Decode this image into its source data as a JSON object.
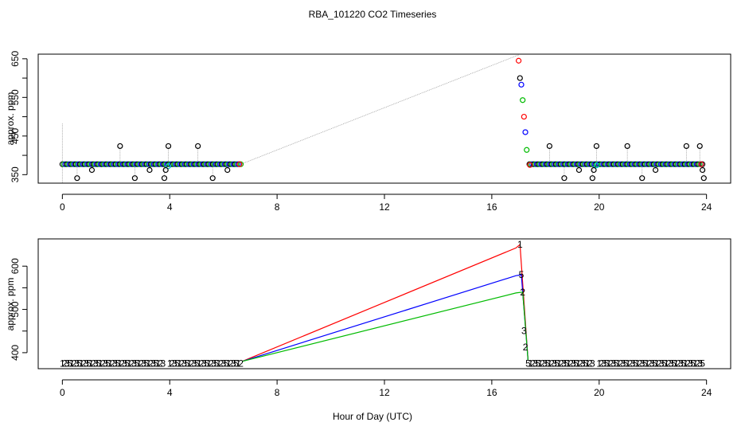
{
  "title": "RBA_101220  CO2 Timeseries",
  "xlabel": "Hour of Day (UTC)",
  "chart_data": [
    {
      "type": "scatter",
      "title": "RBA_101220  CO2 Timeseries",
      "xlabel": "Hour of Day (UTC)",
      "ylabel": "approx. ppm",
      "xlim": [
        -0.9,
        24.9
      ],
      "ylim": [
        328,
        662
      ],
      "xticks": [
        "0",
        "4",
        "8",
        "12",
        "16",
        "20",
        "24"
      ],
      "yticks": [
        "350",
        "450",
        "550",
        "650"
      ],
      "grid": false,
      "drop_lines": true,
      "gap": [
        6.65,
        17.0
      ],
      "colors": {
        "ch1": "#000000",
        "ch2": "#ff0000",
        "ch3": "#00bb00",
        "ch4": "#0000ff",
        "ch5": "#00cccc"
      },
      "spikes_ch1": [
        {
          "x": 0.55,
          "y": 341
        },
        {
          "x": 1.1,
          "y": 362
        },
        {
          "x": 2.15,
          "y": 424
        },
        {
          "x": 2.7,
          "y": 341
        },
        {
          "x": 3.25,
          "y": 362
        },
        {
          "x": 3.8,
          "y": 341
        },
        {
          "x": 3.85,
          "y": 362
        },
        {
          "x": 3.95,
          "y": 424
        },
        {
          "x": 5.05,
          "y": 424
        },
        {
          "x": 5.6,
          "y": 341
        },
        {
          "x": 6.15,
          "y": 362
        },
        {
          "x": 18.15,
          "y": 424
        },
        {
          "x": 18.7,
          "y": 341
        },
        {
          "x": 19.25,
          "y": 362
        },
        {
          "x": 19.75,
          "y": 341
        },
        {
          "x": 19.8,
          "y": 362
        },
        {
          "x": 19.9,
          "y": 424
        },
        {
          "x": 21.05,
          "y": 424
        },
        {
          "x": 21.6,
          "y": 341
        },
        {
          "x": 22.1,
          "y": 362
        },
        {
          "x": 23.25,
          "y": 424
        },
        {
          "x": 23.75,
          "y": 424
        },
        {
          "x": 23.85,
          "y": 362
        },
        {
          "x": 23.9,
          "y": 341
        }
      ],
      "spike_line_start": {
        "x": 0.0,
        "y": 483
      },
      "transition": [
        {
          "x": 17.0,
          "y": 645,
          "series": "ch2"
        },
        {
          "x": 17.05,
          "y": 600,
          "series": "ch1"
        },
        {
          "x": 17.1,
          "y": 583,
          "series": "ch4"
        },
        {
          "x": 17.15,
          "y": 543,
          "series": "ch3"
        },
        {
          "x": 17.2,
          "y": 500,
          "series": "ch2"
        },
        {
          "x": 17.25,
          "y": 460,
          "series": "ch4"
        },
        {
          "x": 17.3,
          "y": 414,
          "series": "ch3"
        }
      ],
      "baseline": 377
    },
    {
      "type": "line",
      "xlabel": "Hour of Day (UTC)",
      "ylabel": "approx. ppm",
      "xlim": [
        -0.9,
        24.9
      ],
      "ylim": [
        363,
        663
      ],
      "xticks": [
        "0",
        "4",
        "8",
        "12",
        "16",
        "20",
        "24"
      ],
      "yticks": [
        "400",
        "500",
        "600"
      ],
      "series": [
        {
          "name": "1",
          "color": "#ff0000",
          "points": [
            [
              6.7,
              380
            ],
            [
              16.9,
              642
            ],
            [
              17.05,
              650
            ],
            [
              17.35,
              383
            ]
          ]
        },
        {
          "name": "2",
          "color": "#0000ff",
          "points": [
            [
              6.7,
              380
            ],
            [
              16.9,
              578
            ],
            [
              17.1,
              580
            ],
            [
              17.35,
              383
            ]
          ]
        },
        {
          "name": "3",
          "color": "#00bb00",
          "points": [
            [
              6.7,
              380
            ],
            [
              16.9,
              538
            ],
            [
              17.15,
              540
            ],
            [
              17.35,
              383
            ]
          ]
        }
      ],
      "label_glyphs": [
        "1",
        "2",
        "3",
        "5"
      ],
      "label_runs": [
        [
          0.0,
          3.75
        ],
        [
          4.0,
          6.65
        ],
        [
          17.45,
          19.75
        ],
        [
          20.0,
          23.85
        ]
      ],
      "label_baseline": 377,
      "transition_labels": [
        {
          "x": 17.05,
          "y": 650,
          "text": "1",
          "color": "#ff0000"
        },
        {
          "x": 17.1,
          "y": 580,
          "text": "5",
          "color": "#ff00ff"
        },
        {
          "x": 17.15,
          "y": 540,
          "text": "2",
          "color": "#00bb00"
        },
        {
          "x": 17.2,
          "y": 450,
          "text": "3",
          "color": "#00bb00"
        },
        {
          "x": 17.25,
          "y": 413,
          "text": "2",
          "color": "#00bb00"
        },
        {
          "x": 17.35,
          "y": 375,
          "text": "5",
          "color": "#0000ff"
        }
      ]
    }
  ]
}
